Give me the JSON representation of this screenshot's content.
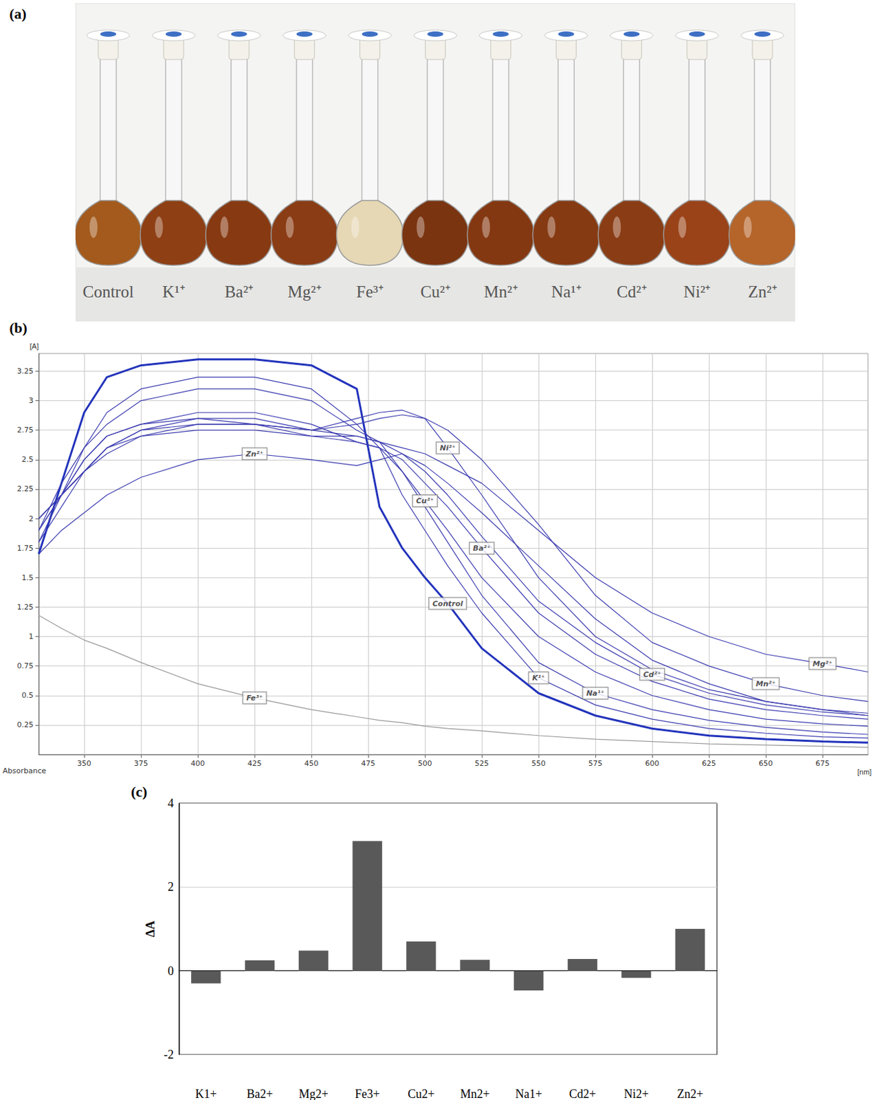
{
  "photo": {
    "panel": "(a)",
    "labels": [
      "Control",
      "K¹⁺",
      "Ba²⁺",
      "Mg²⁺",
      "Fe³⁺",
      "Cu²⁺",
      "Mn²⁺",
      "Na¹⁺",
      "Cd²⁺",
      "Ni²⁺",
      "Zn²⁺"
    ],
    "colors": [
      "#a35a1c",
      "#8e3f14",
      "#873a12",
      "#8a3c14",
      "#e6d8b4",
      "#7a3410",
      "#843811",
      "#863a12",
      "#8a3d15",
      "#9a4318",
      "#b5642a"
    ]
  },
  "chart_data": [
    {
      "panel": "(b)",
      "type": "line",
      "xlabel": "[nm]",
      "ylabel": "[A]",
      "annotation": "Absorbance",
      "x": [
        330,
        340,
        350,
        360,
        375,
        400,
        425,
        450,
        470,
        480,
        490,
        500,
        510,
        525,
        550,
        575,
        600,
        625,
        650,
        675,
        695
      ],
      "xlim": [
        330,
        695
      ],
      "xticks": [
        350,
        375,
        400,
        425,
        450,
        475,
        500,
        525,
        550,
        575,
        600,
        625,
        650,
        675
      ],
      "ylim": [
        0,
        3.4
      ],
      "yticks": [
        0.25,
        0.5,
        0.75,
        1,
        1.25,
        1.5,
        1.75,
        2,
        2.25,
        2.5,
        2.75,
        3,
        3.25
      ],
      "grid": true,
      "series": [
        {
          "name": "Zn²⁺",
          "color": "#3b3bb0",
          "line_style": "solid",
          "values": [
            1.7,
            1.9,
            2.05,
            2.2,
            2.35,
            2.5,
            2.55,
            2.5,
            2.45,
            2.5,
            2.55,
            2.45,
            2.3,
            2.05,
            1.6,
            1.15,
            0.8,
            0.6,
            0.45,
            0.38,
            0.33
          ]
        },
        {
          "name": "Fe³⁺",
          "color": "#999999",
          "line_style": "solid",
          "values": [
            1.18,
            1.07,
            0.97,
            0.9,
            0.78,
            0.6,
            0.48,
            0.38,
            0.32,
            0.29,
            0.27,
            0.24,
            0.22,
            0.2,
            0.16,
            0.13,
            0.11,
            0.09,
            0.08,
            0.07,
            0.06
          ]
        },
        {
          "name": "Control",
          "color": "#2233bb",
          "line_style": "thick",
          "values": [
            1.7,
            2.3,
            2.9,
            3.2,
            3.3,
            3.35,
            3.35,
            3.3,
            3.1,
            2.1,
            1.75,
            1.5,
            1.28,
            0.9,
            0.52,
            0.33,
            0.22,
            0.16,
            0.13,
            0.11,
            0.1
          ]
        },
        {
          "name": "Cu²⁺",
          "color": "#3b3bb0",
          "line_style": "solid",
          "values": [
            1.8,
            2.1,
            2.4,
            2.6,
            2.75,
            2.85,
            2.8,
            2.7,
            2.65,
            2.6,
            2.4,
            2.15,
            1.9,
            1.5,
            1.0,
            0.7,
            0.5,
            0.38,
            0.3,
            0.26,
            0.24
          ]
        },
        {
          "name": "Ni²⁺",
          "color": "#3b3bb0",
          "line_style": "solid",
          "values": [
            2.0,
            2.2,
            2.4,
            2.55,
            2.7,
            2.8,
            2.8,
            2.75,
            2.85,
            2.9,
            2.92,
            2.85,
            2.6,
            2.2,
            1.5,
            1.0,
            0.72,
            0.55,
            0.45,
            0.38,
            0.35
          ]
        },
        {
          "name": "Ba²⁺",
          "color": "#3b3bb0",
          "line_style": "solid",
          "values": [
            1.9,
            2.2,
            2.5,
            2.7,
            2.8,
            2.9,
            2.9,
            2.8,
            2.65,
            2.6,
            2.5,
            2.3,
            2.1,
            1.75,
            1.2,
            0.85,
            0.62,
            0.47,
            0.38,
            0.33,
            0.3
          ]
        },
        {
          "name": "K¹⁺",
          "color": "#3b3bb0",
          "line_style": "solid",
          "values": [
            1.8,
            2.2,
            2.6,
            2.9,
            3.1,
            3.2,
            3.2,
            3.1,
            2.8,
            2.6,
            2.2,
            1.9,
            1.6,
            1.2,
            0.65,
            0.42,
            0.3,
            0.22,
            0.18,
            0.15,
            0.14
          ]
        },
        {
          "name": "Na¹⁺",
          "color": "#3b3bb0",
          "line_style": "solid",
          "values": [
            1.9,
            2.3,
            2.6,
            2.8,
            3.0,
            3.1,
            3.1,
            3.0,
            2.75,
            2.65,
            2.4,
            2.1,
            1.8,
            1.35,
            0.78,
            0.52,
            0.38,
            0.29,
            0.23,
            0.19,
            0.17
          ]
        },
        {
          "name": "Cd²⁺",
          "color": "#3b3bb0",
          "line_style": "solid",
          "values": [
            1.9,
            2.2,
            2.5,
            2.7,
            2.8,
            2.85,
            2.85,
            2.75,
            2.7,
            2.65,
            2.55,
            2.4,
            2.2,
            1.85,
            1.3,
            0.95,
            0.68,
            0.52,
            0.42,
            0.36,
            0.33
          ]
        },
        {
          "name": "Mn²⁺",
          "color": "#3b3bb0",
          "line_style": "solid",
          "values": [
            2.0,
            2.2,
            2.4,
            2.6,
            2.75,
            2.8,
            2.8,
            2.75,
            2.8,
            2.85,
            2.88,
            2.85,
            2.75,
            2.5,
            1.95,
            1.35,
            0.95,
            0.75,
            0.6,
            0.5,
            0.45
          ]
        },
        {
          "name": "Mg²⁺",
          "color": "#3b3bb0",
          "line_style": "solid",
          "values": [
            2.0,
            2.2,
            2.4,
            2.6,
            2.7,
            2.75,
            2.75,
            2.7,
            2.7,
            2.65,
            2.6,
            2.55,
            2.45,
            2.3,
            1.9,
            1.5,
            1.2,
            1.0,
            0.85,
            0.77,
            0.7
          ]
        }
      ]
    },
    {
      "panel": "(c)",
      "type": "bar",
      "ylabel": "ΔA",
      "categories": [
        "K1+",
        "Ba2+",
        "Mg2+",
        "Fe3+",
        "Cu2+",
        "Mn2+",
        "Na1+",
        "Cd2+",
        "Ni2+",
        "Zn2+"
      ],
      "values": [
        -0.3,
        0.25,
        0.48,
        3.1,
        0.7,
        0.26,
        -0.47,
        0.28,
        -0.17,
        1.0
      ],
      "color": "#595959",
      "ylim": [
        -2,
        4
      ],
      "yticks": [
        -2,
        0,
        2,
        4
      ],
      "grid": true
    }
  ]
}
